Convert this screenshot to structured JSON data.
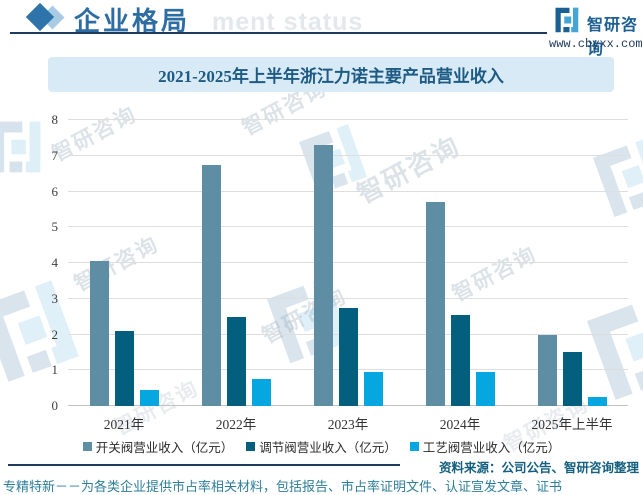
{
  "header": {
    "section_title": "企业格局",
    "bg_watermark": "ment status",
    "brand_name": "智研咨询",
    "brand_url": "www.chyxx.com"
  },
  "banner_title": "2021-2025年上半年浙江力诺主要产品营业收入",
  "chart_data": {
    "type": "bar",
    "title": "2021-2025年上半年浙江力诺主要产品营业收入",
    "categories": [
      "2021年",
      "2022年",
      "2023年",
      "2024年",
      "2025年上半年"
    ],
    "series": [
      {
        "name": "开关阀营业收入（亿元）",
        "color": "#5e8da4",
        "values": [
          4.05,
          6.75,
          7.3,
          5.7,
          2.0
        ]
      },
      {
        "name": "调节阀营业收入（亿元）",
        "color": "#045e7e",
        "values": [
          2.1,
          2.5,
          2.75,
          2.55,
          1.5
        ]
      },
      {
        "name": "工艺阀营业收入（亿元）",
        "color": "#06a7e0",
        "values": [
          0.45,
          0.75,
          0.95,
          0.95,
          0.25
        ]
      }
    ],
    "xlabel": "",
    "ylabel": "",
    "ylim": [
      0,
      8
    ],
    "yticks": [
      0,
      1,
      2,
      3,
      4,
      5,
      6,
      7,
      8
    ],
    "grid": true,
    "legend_position": "bottom"
  },
  "watermark_stamp": "智研咨询",
  "footer": {
    "source": "资料来源：公司公告、智研咨询整理",
    "note": "专精特新－－为各类企业提供市占率相关材料，包括报告、市占率证明文件、认证宣发文章、证书"
  }
}
